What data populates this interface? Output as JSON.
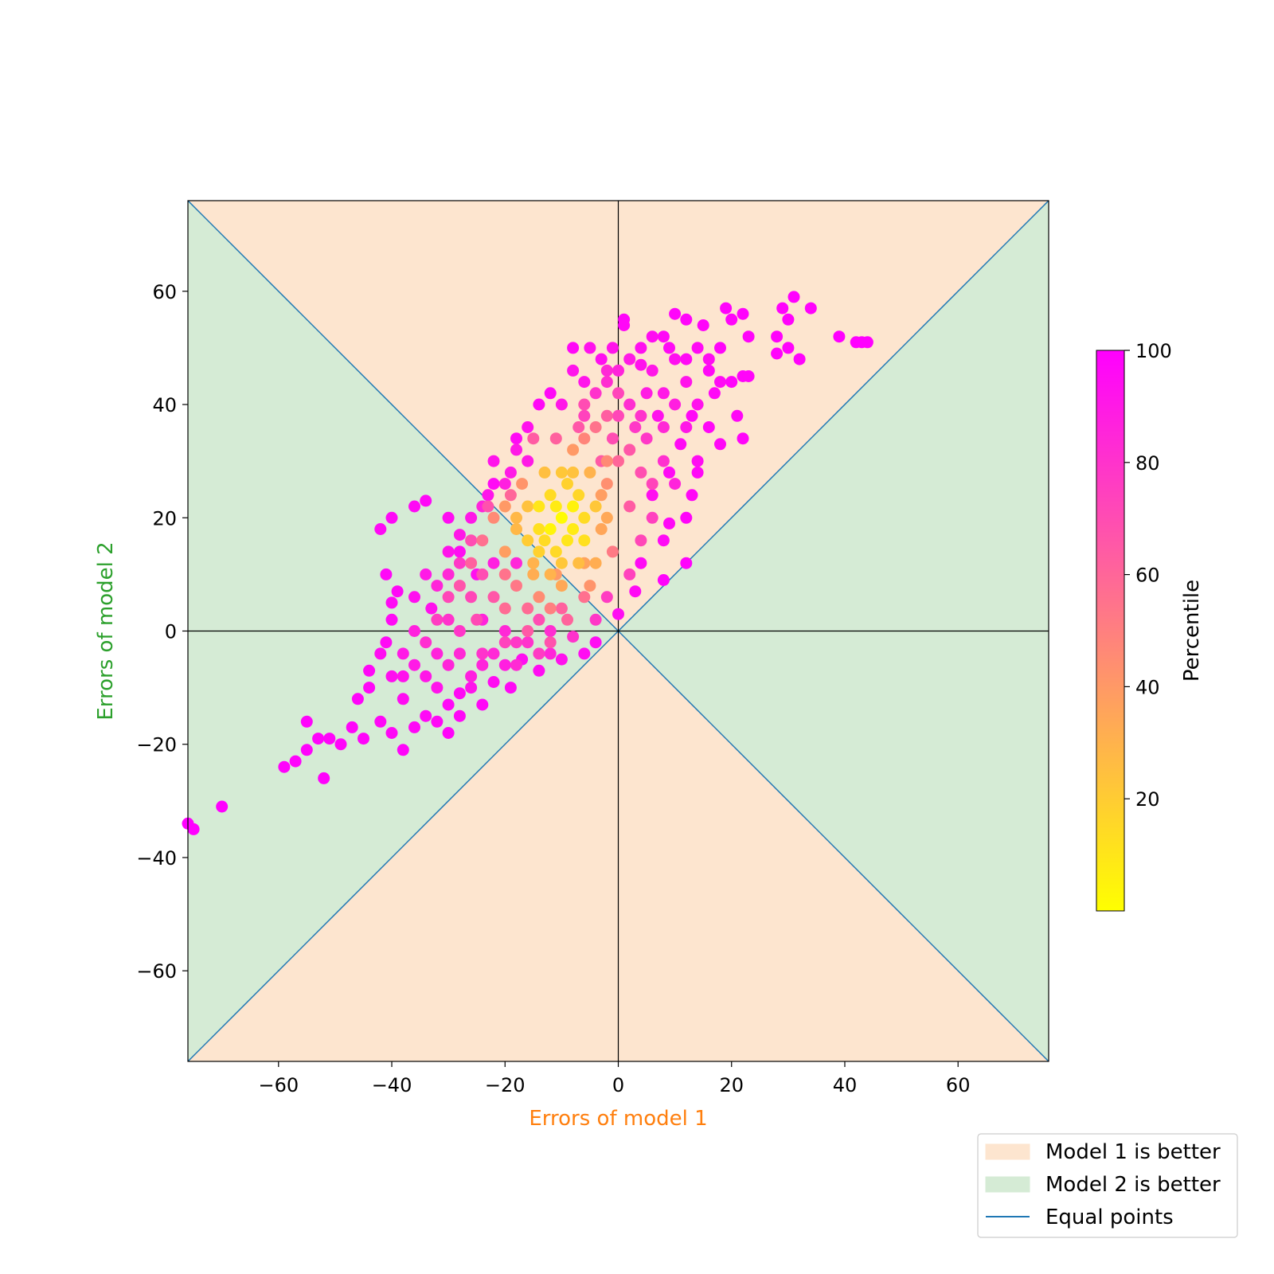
{
  "chart_data": {
    "type": "scatter",
    "title": "",
    "xlabel": "Errors of model 1",
    "ylabel": "Errors of model 2",
    "xlabel_color": "#ff7f0e",
    "ylabel_color": "#2ca02c",
    "xlim": [
      -76,
      76
    ],
    "ylim": [
      -76,
      76
    ],
    "xticks": [
      -60,
      -40,
      -20,
      0,
      20,
      40,
      60
    ],
    "yticks": [
      -60,
      -40,
      -20,
      0,
      20,
      40,
      60
    ],
    "tick_labels_x": [
      "−60",
      "−40",
      "−20",
      "0",
      "20",
      "40",
      "60"
    ],
    "tick_labels_y": [
      "−60",
      "−40",
      "−20",
      "0",
      "20",
      "40",
      "60"
    ],
    "grid": false,
    "regions": {
      "model1_better_color": "#fde5cf",
      "model2_better_color": "#d5ebd5"
    },
    "equal_line_color": "#1f77b4",
    "colorbar": {
      "label": "Percentile",
      "range": [
        0,
        100
      ],
      "ticks": [
        20,
        40,
        60,
        80,
        100
      ],
      "tick_labels": [
        "20",
        "40",
        "60",
        "80",
        "100"
      ],
      "colormap": [
        "#ffff00",
        "#ff00ff"
      ]
    },
    "legend": {
      "placement": "bottom-right",
      "entries": [
        {
          "label": "Model 1 is better",
          "kind": "patch",
          "color": "#fde5cf"
        },
        {
          "label": "Model 2 is better",
          "kind": "patch",
          "color": "#d5ebd5"
        },
        {
          "label": "Equal points",
          "kind": "line",
          "color": "#1f77b4"
        }
      ]
    },
    "points": [
      [
        -10,
        20,
        1
      ],
      [
        -12,
        18,
        4
      ],
      [
        -8,
        22,
        5
      ],
      [
        -14,
        22,
        10
      ],
      [
        -6,
        16,
        12
      ],
      [
        -11,
        14,
        15
      ],
      [
        -9,
        26,
        18
      ],
      [
        -16,
        16,
        20
      ],
      [
        -4,
        22,
        22
      ],
      [
        -13,
        28,
        25
      ],
      [
        -7,
        12,
        26
      ],
      [
        -18,
        20,
        28
      ],
      [
        -5,
        28,
        30
      ],
      [
        -15,
        10,
        32
      ],
      [
        -10,
        8,
        34
      ],
      [
        -3,
        18,
        35
      ],
      [
        -20,
        14,
        38
      ],
      [
        -8,
        32,
        40
      ],
      [
        -17,
        26,
        42
      ],
      [
        -2,
        26,
        44
      ],
      [
        -14,
        6,
        45
      ],
      [
        -22,
        20,
        46
      ],
      [
        -6,
        34,
        48
      ],
      [
        -12,
        4,
        50
      ],
      [
        -1,
        14,
        52
      ],
      [
        -18,
        8,
        53
      ],
      [
        -4,
        36,
        55
      ],
      [
        -24,
        16,
        56
      ],
      [
        -20,
        4,
        58
      ],
      [
        0,
        30,
        60
      ],
      [
        -9,
        2,
        61
      ],
      [
        -26,
        12,
        62
      ],
      [
        -2,
        38,
        63
      ],
      [
        2,
        22,
        64
      ],
      [
        -16,
        0,
        65
      ],
      [
        -22,
        6,
        66
      ],
      [
        -28,
        8,
        67
      ],
      [
        -12,
        -2,
        68
      ],
      [
        4,
        28,
        69
      ],
      [
        -6,
        40,
        70
      ],
      [
        -25,
        2,
        71
      ],
      [
        -30,
        6,
        72
      ],
      [
        0,
        42,
        73
      ],
      [
        -20,
        -2,
        74
      ],
      [
        6,
        20,
        75
      ],
      [
        -32,
        2,
        76
      ],
      [
        -14,
        -4,
        77
      ],
      [
        3,
        36,
        78
      ],
      [
        -28,
        0,
        79
      ],
      [
        -24,
        -4,
        80
      ],
      [
        8,
        30,
        81
      ],
      [
        -34,
        -2,
        82
      ],
      [
        -18,
        -6,
        83
      ],
      [
        -2,
        46,
        84
      ],
      [
        -30,
        -6,
        85
      ],
      [
        10,
        26,
        86
      ],
      [
        -36,
        0,
        87
      ],
      [
        -26,
        -8,
        88
      ],
      [
        5,
        42,
        89
      ],
      [
        -38,
        -4,
        90
      ],
      [
        12,
        36,
        91
      ],
      [
        -32,
        -10,
        92
      ],
      [
        -5,
        50,
        93
      ],
      [
        -40,
        -8,
        94
      ],
      [
        14,
        30,
        95
      ],
      [
        -30,
        20,
        95
      ],
      [
        -36,
        22,
        96
      ],
      [
        -42,
        18,
        96
      ],
      [
        -40,
        20,
        97
      ],
      [
        -34,
        23,
        97
      ],
      [
        -22,
        26,
        96
      ],
      [
        -18,
        34,
        96
      ],
      [
        -14,
        40,
        97
      ],
      [
        -12,
        42,
        97
      ],
      [
        -8,
        50,
        97
      ],
      [
        1,
        54,
        97
      ],
      [
        1,
        55,
        98
      ],
      [
        8,
        52,
        97
      ],
      [
        10,
        56,
        98
      ],
      [
        12,
        55,
        98
      ],
      [
        15,
        54,
        98
      ],
      [
        19,
        57,
        99
      ],
      [
        20,
        55,
        98
      ],
      [
        22,
        56,
        99
      ],
      [
        23,
        52,
        98
      ],
      [
        18,
        50,
        98
      ],
      [
        16,
        46,
        97
      ],
      [
        20,
        44,
        98
      ],
      [
        21,
        38,
        97
      ],
      [
        22,
        45,
        98
      ],
      [
        22,
        34,
        98
      ],
      [
        18,
        33,
        97
      ],
      [
        16,
        36,
        97
      ],
      [
        14,
        28,
        97
      ],
      [
        13,
        24,
        97
      ],
      [
        12,
        20,
        98
      ],
      [
        9,
        19,
        97
      ],
      [
        8,
        16,
        96
      ],
      [
        4,
        12,
        96
      ],
      [
        12,
        12,
        99
      ],
      [
        8,
        9,
        99
      ],
      [
        3,
        7,
        96
      ],
      [
        0,
        3,
        95
      ],
      [
        -4,
        -2,
        95
      ],
      [
        -6,
        -4,
        95
      ],
      [
        -14,
        -7,
        95
      ],
      [
        -19,
        -10,
        96
      ],
      [
        -24,
        -13,
        97
      ],
      [
        -28,
        -15,
        97
      ],
      [
        -30,
        -18,
        98
      ],
      [
        -34,
        -15,
        97
      ],
      [
        -36,
        -17,
        97
      ],
      [
        -38,
        -21,
        98
      ],
      [
        -40,
        -18,
        97
      ],
      [
        -42,
        -16,
        97
      ],
      [
        -45,
        -19,
        98
      ],
      [
        -47,
        -17,
        98
      ],
      [
        -49,
        -20,
        98
      ],
      [
        -51,
        -19,
        98
      ],
      [
        -53,
        -19,
        99
      ],
      [
        -55,
        -21,
        99
      ],
      [
        -57,
        -23,
        99
      ],
      [
        -59,
        -24,
        99
      ],
      [
        -55,
        -16,
        99
      ],
      [
        -52,
        -26,
        99
      ],
      [
        -70,
        -31,
        100
      ],
      [
        -75,
        -35,
        100
      ],
      [
        -76,
        -34,
        100
      ],
      [
        -46,
        -12,
        98
      ],
      [
        -44,
        -7,
        97
      ],
      [
        -41,
        -2,
        96
      ],
      [
        -40,
        2,
        96
      ],
      [
        -41,
        10,
        97
      ],
      [
        -39,
        7,
        97
      ],
      [
        -40,
        5,
        96
      ],
      [
        -28,
        14,
        95
      ],
      [
        -25,
        10,
        94
      ],
      [
        -36,
        6,
        94
      ],
      [
        -33,
        4,
        93
      ],
      [
        -44,
        -10,
        97
      ],
      [
        -30,
        -13,
        97
      ],
      [
        -28,
        -11,
        96
      ],
      [
        -22,
        -9,
        95
      ],
      [
        -17,
        -5,
        94
      ],
      [
        -10,
        -5,
        93
      ],
      [
        28,
        52,
        99
      ],
      [
        28,
        49,
        99
      ],
      [
        30,
        50,
        99
      ],
      [
        29,
        57,
        99
      ],
      [
        31,
        59,
        100
      ],
      [
        30,
        55,
        99
      ],
      [
        32,
        48,
        99
      ],
      [
        34,
        57,
        99
      ],
      [
        39,
        52,
        100
      ],
      [
        42,
        51,
        100
      ],
      [
        43,
        51,
        100
      ],
      [
        44,
        51,
        100
      ],
      [
        23,
        45,
        98
      ],
      [
        17,
        42,
        97
      ],
      [
        13,
        38,
        97
      ],
      [
        11,
        33,
        96
      ],
      [
        9,
        28,
        96
      ],
      [
        6,
        24,
        94
      ],
      [
        7,
        38,
        93
      ],
      [
        4,
        47,
        93
      ],
      [
        -3,
        48,
        94
      ],
      [
        -6,
        44,
        92
      ],
      [
        -8,
        46,
        92
      ],
      [
        -10,
        40,
        91
      ],
      [
        -16,
        30,
        90
      ],
      [
        -19,
        28,
        90
      ],
      [
        -23,
        24,
        92
      ],
      [
        -26,
        20,
        91
      ],
      [
        -28,
        17,
        91
      ],
      [
        -30,
        14,
        92
      ],
      [
        -22,
        12,
        88
      ],
      [
        -18,
        12,
        85
      ],
      [
        -24,
        2,
        86
      ],
      [
        -20,
        0,
        84
      ],
      [
        -12,
        0,
        82
      ],
      [
        -8,
        -1,
        80
      ],
      [
        -4,
        2,
        78
      ],
      [
        -2,
        6,
        76
      ],
      [
        2,
        10,
        74
      ],
      [
        4,
        16,
        72
      ],
      [
        6,
        26,
        73
      ],
      [
        -1,
        34,
        70
      ],
      [
        -3,
        30,
        65
      ],
      [
        -7,
        36,
        66
      ],
      [
        -11,
        34,
        62
      ],
      [
        -15,
        34,
        64
      ],
      [
        -19,
        24,
        60
      ],
      [
        -23,
        22,
        68
      ],
      [
        -24,
        10,
        70
      ],
      [
        -20,
        10,
        55
      ],
      [
        -16,
        4,
        58
      ],
      [
        -11,
        10,
        40
      ],
      [
        -5,
        8,
        42
      ],
      [
        -6,
        12,
        36
      ],
      [
        -3,
        24,
        38
      ],
      [
        -15,
        12,
        30
      ],
      [
        -13,
        16,
        14
      ],
      [
        -8,
        18,
        8
      ],
      [
        -11,
        22,
        8
      ],
      [
        -9,
        16,
        10
      ],
      [
        -7,
        24,
        16
      ],
      [
        -14,
        18,
        12
      ],
      [
        -12,
        24,
        14
      ],
      [
        -10,
        28,
        22
      ],
      [
        -16,
        22,
        24
      ],
      [
        -6,
        20,
        14
      ],
      [
        -10,
        12,
        22
      ],
      [
        -4,
        12,
        32
      ],
      [
        -2,
        20,
        34
      ],
      [
        -8,
        28,
        24
      ],
      [
        -18,
        18,
        28
      ],
      [
        -14,
        14,
        18
      ],
      [
        -12,
        10,
        30
      ],
      [
        -20,
        22,
        40
      ],
      [
        -2,
        30,
        46
      ],
      [
        -26,
        6,
        72
      ],
      [
        -30,
        2,
        80
      ],
      [
        -32,
        -4,
        86
      ],
      [
        -36,
        -6,
        90
      ],
      [
        -34,
        -8,
        91
      ],
      [
        -38,
        -8,
        93
      ],
      [
        -42,
        -4,
        95
      ],
      [
        -38,
        -12,
        95
      ],
      [
        -32,
        -16,
        97
      ],
      [
        -26,
        -10,
        92
      ],
      [
        -22,
        -4,
        84
      ],
      [
        -18,
        -2,
        78
      ],
      [
        -14,
        2,
        70
      ],
      [
        -10,
        4,
        62
      ],
      [
        -6,
        6,
        56
      ],
      [
        -16,
        -2,
        80
      ],
      [
        -24,
        -6,
        86
      ],
      [
        -28,
        -4,
        84
      ],
      [
        -20,
        -6,
        88
      ],
      [
        -12,
        -4,
        85
      ],
      [
        2,
        40,
        82
      ],
      [
        5,
        34,
        78
      ],
      [
        8,
        36,
        84
      ],
      [
        10,
        40,
        88
      ],
      [
        12,
        44,
        92
      ],
      [
        14,
        40,
        93
      ],
      [
        16,
        48,
        95
      ],
      [
        18,
        44,
        96
      ],
      [
        14,
        50,
        96
      ],
      [
        10,
        48,
        94
      ],
      [
        6,
        46,
        91
      ],
      [
        8,
        42,
        90
      ],
      [
        4,
        38,
        80
      ],
      [
        0,
        38,
        72
      ],
      [
        2,
        32,
        66
      ],
      [
        -4,
        42,
        80
      ],
      [
        -6,
        38,
        74
      ],
      [
        -2,
        44,
        82
      ],
      [
        0,
        46,
        86
      ],
      [
        2,
        48,
        90
      ],
      [
        -1,
        50,
        92
      ],
      [
        4,
        50,
        94
      ],
      [
        6,
        52,
        95
      ],
      [
        9,
        50,
        96
      ],
      [
        12,
        48,
        96
      ],
      [
        -26,
        16,
        70
      ],
      [
        -28,
        12,
        78
      ],
      [
        -32,
        8,
        85
      ],
      [
        -34,
        10,
        90
      ],
      [
        -30,
        10,
        84
      ],
      [
        -24,
        22,
        86
      ],
      [
        -20,
        26,
        88
      ],
      [
        -22,
        30,
        92
      ],
      [
        -18,
        32,
        90
      ],
      [
        -16,
        36,
        93
      ]
    ]
  }
}
